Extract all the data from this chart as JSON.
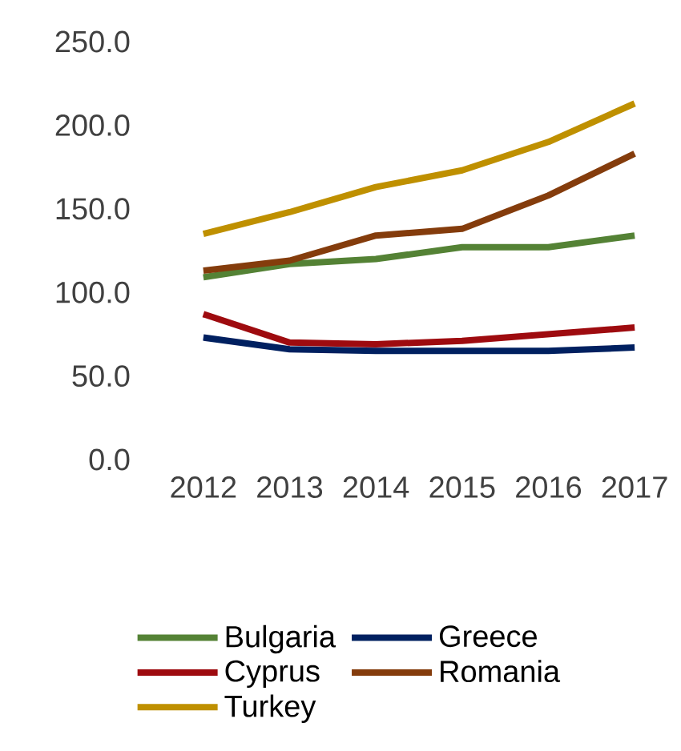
{
  "chart_data": {
    "type": "line",
    "categories": [
      "2012",
      "2013",
      "2014",
      "2015",
      "2016",
      "2017"
    ],
    "ylim": [
      0,
      250
    ],
    "yticks": [
      {
        "value": 0,
        "label": "0.0"
      },
      {
        "value": 50,
        "label": "50.0"
      },
      {
        "value": 100,
        "label": "100.0"
      },
      {
        "value": 150,
        "label": "150.0"
      },
      {
        "value": 200,
        "label": "200.0"
      },
      {
        "value": 250,
        "label": "250.0"
      }
    ],
    "grid": false,
    "legend": "bottom",
    "series": [
      {
        "name": "Bulgaria",
        "color": "#548235",
        "values": [
          109,
          117,
          120,
          127,
          127,
          134
        ]
      },
      {
        "name": "Greece",
        "color": "#002060",
        "values": [
          73,
          66,
          65,
          65,
          65,
          67
        ]
      },
      {
        "name": "Cyprus",
        "color": "#9e0b0f",
        "values": [
          87,
          70,
          69,
          71,
          75,
          79
        ]
      },
      {
        "name": "Romania",
        "color": "#843c0c",
        "values": [
          113,
          119,
          134,
          138,
          158,
          183
        ]
      },
      {
        "name": "Turkey",
        "color": "#bf9000",
        "values": [
          135,
          148,
          163,
          173,
          190,
          213
        ]
      }
    ]
  }
}
